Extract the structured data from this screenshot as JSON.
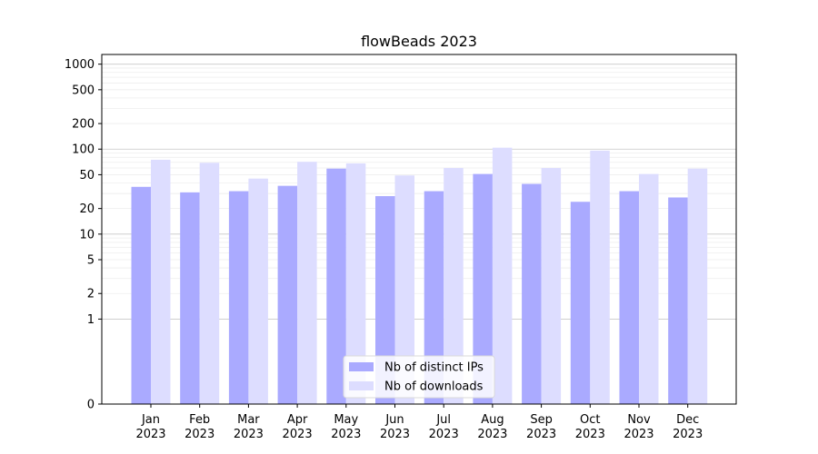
{
  "chart_data": {
    "type": "bar",
    "title": "flowBeads 2023",
    "xlabel": "",
    "ylabel": "",
    "categories": [
      "Jan\n2023",
      "Feb\n2023",
      "Mar\n2023",
      "Apr\n2023",
      "May\n2023",
      "Jun\n2023",
      "Jul\n2023",
      "Aug\n2023",
      "Sep\n2023",
      "Oct\n2023",
      "Nov\n2023",
      "Dec\n2023"
    ],
    "series": [
      {
        "name": "Nb of distinct IPs",
        "color": "#aaaaff",
        "values": [
          36,
          31,
          32,
          37,
          59,
          28,
          32,
          51,
          39,
          24,
          32,
          27
        ]
      },
      {
        "name": "Nb of downloads",
        "color": "#ddddff",
        "values": [
          75,
          69,
          45,
          71,
          68,
          49,
          60,
          104,
          60,
          96,
          51,
          59
        ]
      }
    ],
    "yscale": "symlog",
    "ylim": [
      0,
      1300
    ],
    "yticks": [
      0,
      1,
      2,
      5,
      10,
      20,
      50,
      100,
      200,
      500,
      1000
    ],
    "ytick_labels": [
      "0",
      "1",
      "2",
      "5",
      "10",
      "20",
      "50",
      "100",
      "200",
      "500",
      "1000"
    ],
    "grid": true,
    "legend_position": "lower-center"
  }
}
